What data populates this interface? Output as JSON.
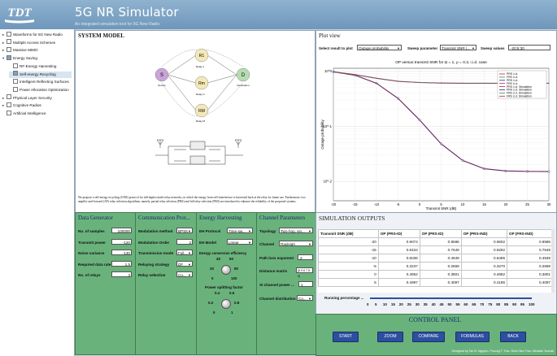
{
  "header": {
    "title": "5G NR Simulator",
    "subtitle": "An integrated simulation tool for 5G New Radio"
  },
  "tree": [
    {
      "label": "Waveforms for 5G New Radio",
      "exp": "+",
      "indent": 0
    },
    {
      "label": "Multiple Access Schemes",
      "exp": "+",
      "indent": 0
    },
    {
      "label": "Massive MIMO",
      "exp": "+",
      "indent": 0
    },
    {
      "label": "Energy Saving",
      "exp": "-",
      "indent": 0,
      "checked": true
    },
    {
      "label": "RF-Energy Harvesting",
      "exp": "",
      "indent": 1
    },
    {
      "label": "Self-energy Recycling",
      "exp": "",
      "indent": 1,
      "checked": true,
      "selected": true
    },
    {
      "label": "Intelligent Reflecting Surfaces",
      "exp": "",
      "indent": 1
    },
    {
      "label": "Power Allocation Optimization",
      "exp": "",
      "indent": 1
    },
    {
      "label": "Physical Layer Security",
      "exp": "+",
      "indent": 0
    },
    {
      "label": "Cognitive Radios",
      "exp": "+",
      "indent": 0
    },
    {
      "label": "Artificial Intelligence",
      "exp": "",
      "indent": 0
    }
  ],
  "system_model": {
    "title": "SYSTEM MODEL",
    "nodes": {
      "source": "S",
      "source_label": "Source",
      "dest": "D",
      "dest_label": "Destination",
      "r1": "R1",
      "r2": "Rm",
      "r3": "RM",
      "relay1": "Relay 1",
      "relaym": "Relay m",
      "relayM": "Relay M"
    },
    "description": "We propose a self-energy recycling (S-ER) protocol for full-duplex multi-relay networks, in which the energy from self-interference is harvested back at the relay for future use. Furthermore, two amplify-and-forward (AF) relay selection algorithms, namely, partial relay selection (PRS) and full relay selection (FRS) are introduced to enhance the reliability of the proposed systems."
  },
  "plot_view": {
    "title": "Plot view",
    "select_label": "Select result to plot",
    "select_value": "Outage probability",
    "sweep_param_label": "Sweep parameter",
    "sweep_param_value": "Transmit SNR (...",
    "sweep_values_label": "Sweep values",
    "sweep_values_value": "-20:5:30"
  },
  "chart_data": {
    "type": "line",
    "title": "OP versus transmit SNR for Ω = 1, ρ = 0.3, i.i.d. case",
    "xlabel": "Transmit SNR (dB)",
    "ylabel": "Outage probability",
    "yscale": "log",
    "xlim": [
      -20,
      30
    ],
    "ylim_exp": [
      -2.35,
      0.05
    ],
    "ytick_labels": [
      "10^0",
      "10^-1",
      "10^-2"
    ],
    "x": [
      -20,
      -15,
      -10,
      -5,
      0,
      5,
      10,
      15,
      20,
      25,
      30
    ],
    "xticks": [
      -20,
      -15,
      -10,
      -5,
      0,
      5,
      10,
      15,
      20,
      25,
      30
    ],
    "series": [
      {
        "name": "PRS i.i.d. Simulation",
        "color": "#1f2d8a",
        "marker": "circle",
        "values": [
          0.97,
          0.84,
          0.6,
          0.32,
          0.13,
          0.048,
          0.024,
          0.017,
          0.0155,
          0.0152,
          0.0151
        ]
      },
      {
        "name": "FRS i.i.d. Simulation",
        "color": "#b0157a",
        "marker": "star",
        "values": [
          0.97,
          0.86,
          0.74,
          0.65,
          0.62,
          0.605,
          0.6,
          0.6,
          0.6,
          0.6,
          0.6
        ]
      },
      {
        "name": "PRS i.i.d.",
        "color": "#cc1a1a",
        "marker": "none",
        "values": [
          0.97,
          0.84,
          0.6,
          0.32,
          0.13,
          0.048,
          0.024,
          0.017,
          0.0155,
          0.0152,
          0.0151
        ]
      },
      {
        "name": "FRS i.i.d.",
        "color": "#2a9a3a",
        "marker": "none",
        "values": [
          0.97,
          0.86,
          0.74,
          0.65,
          0.62,
          0.605,
          0.6,
          0.6,
          0.6,
          0.6,
          0.6
        ]
      }
    ],
    "legend": [
      "PRS i.i.d.",
      "FRS i.i.d.",
      "PRS i.i.d.",
      "FRS i.i.d.",
      "PRS i.i.d. Simulation",
      "PRS i.i.d. Simulation",
      "FRS i.i.d. Simulation",
      "FRS i.i.d. Simulation"
    ],
    "legend_position": "top-right"
  },
  "data_generator": {
    "title": "Data Generator",
    "fields": [
      {
        "label": "No. of samples",
        "value": "100000"
      },
      {
        "label": "Transmit power",
        "value": "-120"
      },
      {
        "label": "Noise variance",
        "value": "-130"
      },
      {
        "label": "Required data rate",
        "value": "1.5"
      },
      {
        "label": "No. of relays",
        "value": "3"
      }
    ]
  },
  "comm_protocol": {
    "title": "Communication Prot...",
    "fields": [
      {
        "label": "Modulation method",
        "value": "BPSK",
        "type": "select"
      },
      {
        "label": "Modulation Order",
        "value": "2",
        "type": "input"
      },
      {
        "label": "Transmission mode",
        "value": "Full...",
        "type": "select"
      },
      {
        "label": "Relaying strategy",
        "value": "DF",
        "type": "select"
      },
      {
        "label": "Relay selection",
        "value": "Co...",
        "type": "select"
      }
    ]
  },
  "energy_harvesting": {
    "title": "Energy Harvesting",
    "protocol_label": "EH Protocol",
    "protocol_value": "Time-sw...",
    "model_label": "EH Model",
    "model_value": "Linear",
    "efficiency_label": "Energy conversion efficiency",
    "eff_ticks": [
      "40",
      "60",
      "20",
      "80",
      "0",
      "100"
    ],
    "split_label": "Power splitting factor",
    "split_ticks": [
      "0.4",
      "0.6",
      "0.2",
      "0.8",
      "0",
      "1"
    ]
  },
  "channel_params": {
    "title": "Channel Parameters",
    "topology_label": "Topology",
    "topology_value": "Two-hop, sin...",
    "channel_label": "Channel",
    "channel_value": "Rayleigh",
    "path_loss_label": "Path loss exponent",
    "path_loss_value": "3",
    "distance_label": "Distance matrix",
    "distance_value": "[8 9 6 7 8 9]",
    "si_power_label": "SI channel power ...",
    "si_power_value": "1",
    "distribution_label": "Channel distribution",
    "distribution_value": "Co..."
  },
  "sim_outputs": {
    "title": "SIMULATION OUTPUTS",
    "columns": [
      "Transmit SNR (dB)",
      "OP (PRS-ID)",
      "OP (PRS-ID)",
      "OP (PRS-IND)",
      "OP (FRS-IND)"
    ],
    "rows": [
      [
        "-20",
        "0.9074",
        "0.9586",
        "0.9602",
        "0.9586"
      ],
      [
        "-15",
        "0.8434",
        "0.7649",
        "0.8292",
        "0.7649"
      ],
      [
        "-10",
        "0.6036",
        "0.4949",
        "0.6495",
        "0.4949"
      ],
      [
        "-5",
        "0.3237",
        "0.2669",
        "0.3270",
        "0.2669"
      ],
      [
        "0",
        "0.4852",
        "0.3801",
        "0.4682",
        "0.3801"
      ],
      [
        "5",
        "0.4997",
        "0.4097",
        "0.4185",
        "0.4097"
      ]
    ],
    "progress_label": "Running percentage ...",
    "progress_ticks": [
      "0",
      "5",
      "10",
      "15",
      "20",
      "25",
      "30",
      "35",
      "40",
      "45",
      "50",
      "55",
      "60",
      "65",
      "70",
      "75",
      "80",
      "85",
      "90",
      "95",
      "100"
    ],
    "progress_value": 100
  },
  "control_panel": {
    "title": "CONTROL PANEL",
    "buttons": [
      "START",
      "ZOOM",
      "COMPARE",
      "FORMULAS",
      "BACK"
    ]
  },
  "footer": "Designed by Tan N. Nguyen, Phuong T. Tran, Dinh-Hieu Tran, Miroslav Voznak"
}
